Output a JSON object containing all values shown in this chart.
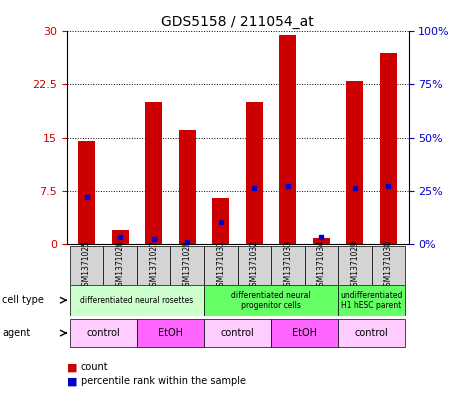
{
  "title": "GDS5158 / 211054_at",
  "samples": [
    "GSM1371025",
    "GSM1371026",
    "GSM1371027",
    "GSM1371028",
    "GSM1371031",
    "GSM1371032",
    "GSM1371033",
    "GSM1371034",
    "GSM1371029",
    "GSM1371030"
  ],
  "counts": [
    14.5,
    2.0,
    20.0,
    16.0,
    6.5,
    20.0,
    29.5,
    0.8,
    23.0,
    27.0
  ],
  "percentiles": [
    22,
    3,
    2,
    1,
    10,
    26,
    27,
    3,
    26,
    27
  ],
  "bar_color": "#cc0000",
  "dot_color": "#0000cc",
  "ylim_left": [
    0,
    30
  ],
  "ylim_right": [
    0,
    100
  ],
  "yticks_left": [
    0,
    7.5,
    15,
    22.5,
    30
  ],
  "yticks_right": [
    0,
    25,
    50,
    75,
    100
  ],
  "ytick_labels_left": [
    "0",
    "7.5",
    "15",
    "22.5",
    "30"
  ],
  "ytick_labels_right": [
    "0%",
    "25%",
    "50%",
    "75%",
    "100%"
  ],
  "cell_type_groups": [
    {
      "label": "differentiated neural rosettes",
      "start": 0,
      "end": 4,
      "color": "#ccffcc"
    },
    {
      "label": "differentiated neural\nprogenitor cells",
      "start": 4,
      "end": 8,
      "color": "#66ff66"
    },
    {
      "label": "undifferentiated\nH1 hESC parent",
      "start": 8,
      "end": 10,
      "color": "#66ff66"
    }
  ],
  "agent_groups": [
    {
      "label": "control",
      "start": 0,
      "end": 2,
      "color": "#ffccff"
    },
    {
      "label": "EtOH",
      "start": 2,
      "end": 4,
      "color": "#ff66ff"
    },
    {
      "label": "control",
      "start": 4,
      "end": 6,
      "color": "#ffccff"
    },
    {
      "label": "EtOH",
      "start": 6,
      "end": 8,
      "color": "#ff66ff"
    },
    {
      "label": "control",
      "start": 8,
      "end": 10,
      "color": "#ffccff"
    }
  ],
  "sample_bg": "#d4d4d4",
  "left_label_color": "#cc0000",
  "right_label_color": "#0000cc"
}
